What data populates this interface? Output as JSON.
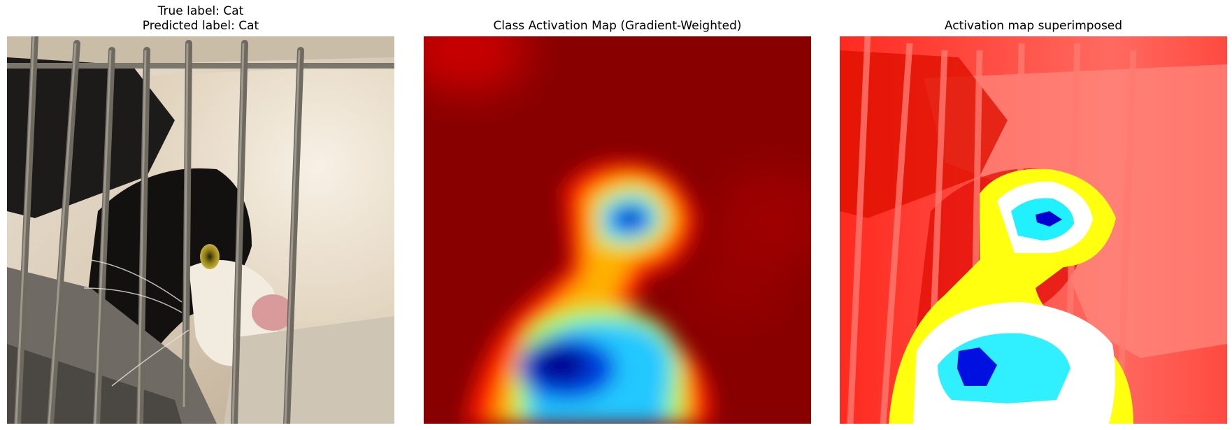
{
  "panels": [
    {
      "title_line1": "True label: Cat",
      "title_line2": "Predicted label: Cat",
      "image": "cat-photo"
    },
    {
      "title": "Class Activation Map (Gradient-Weighted)",
      "image": "activation-heatmap",
      "colormap": "jet"
    },
    {
      "title": "Activation map superimposed",
      "image": "superimposed-heatmap-on-photo"
    }
  ]
}
